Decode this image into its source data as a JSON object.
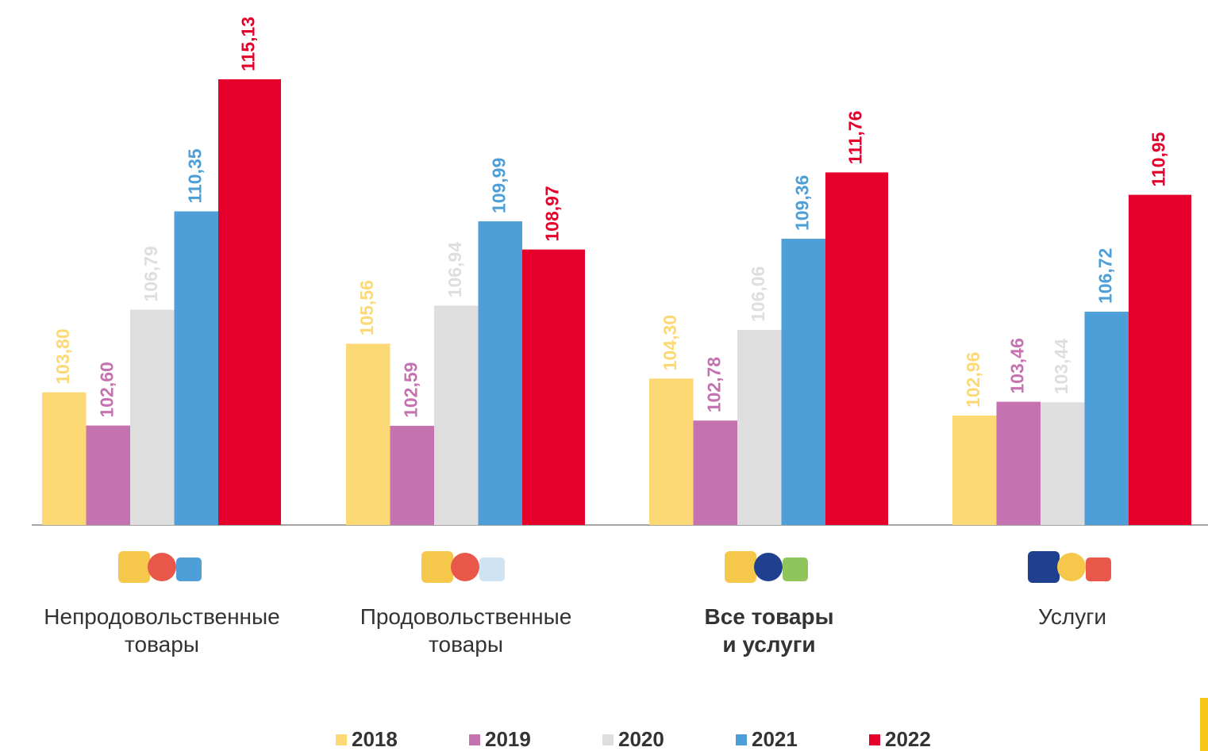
{
  "chart_data": {
    "type": "bar",
    "categories": [
      "Непродовольственные\nтовары",
      "Продовольственные\nтовары",
      "Все товары\nи услуги",
      "Услуги"
    ],
    "emphasized_category": 2,
    "series": [
      {
        "name": "2018",
        "color": "#fcd975",
        "values": [
          103.8,
          105.56,
          104.3,
          102.96
        ],
        "value_labels": [
          "103,80",
          "105,56",
          "104,30",
          "102,96"
        ]
      },
      {
        "name": "2019",
        "color": "#c572b0",
        "values": [
          102.6,
          102.59,
          102.78,
          103.46
        ],
        "value_labels": [
          "102,60",
          "102,59",
          "102,78",
          "103,46"
        ]
      },
      {
        "name": "2020",
        "color": "#dedede",
        "values": [
          106.79,
          106.94,
          106.06,
          103.44
        ],
        "value_labels": [
          "106,79",
          "106,94",
          "106,06",
          "103,44"
        ]
      },
      {
        "name": "2021",
        "color": "#4e9fd8",
        "values": [
          110.35,
          109.99,
          109.36,
          106.72
        ],
        "value_labels": [
          "110,35",
          "109,99",
          "109,36",
          "106,72"
        ]
      },
      {
        "name": "2022",
        "color": "#e4002b",
        "values": [
          115.13,
          108.97,
          111.76,
          110.95
        ],
        "value_labels": [
          "115,13",
          "108,97",
          "111,76",
          "110,95"
        ]
      }
    ],
    "ylim": [
      99,
      118
    ],
    "legend": "bottom"
  }
}
